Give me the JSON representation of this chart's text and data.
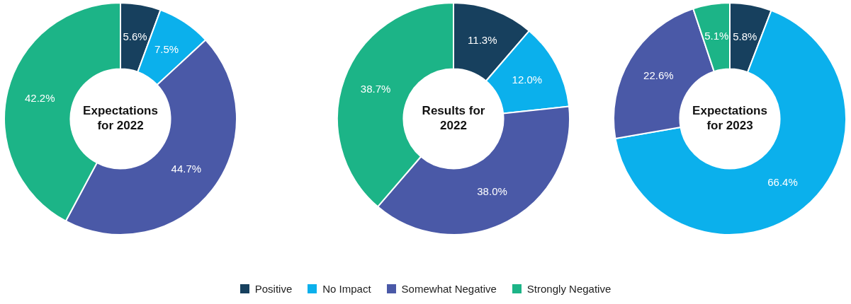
{
  "chart_data": [
    {
      "type": "donut",
      "title": "Expectations for 2022",
      "categories": [
        "Positive",
        "No Impact",
        "Somewhat Negative",
        "Strongly Negative"
      ],
      "values": [
        5.6,
        7.5,
        44.7,
        42.2
      ],
      "colors": [
        "#17405e",
        "#0bb0ec",
        "#4a59a7",
        "#1cb487"
      ],
      "value_labels": [
        "5.6%",
        "7.5%",
        "44.7%",
        "42.2%"
      ],
      "legend": "bottom"
    },
    {
      "type": "donut",
      "title": "Results for 2022",
      "categories": [
        null,
        null,
        null,
        null
      ],
      "values": [
        11.3,
        12.0,
        38.0,
        38.7
      ],
      "colors": [
        "#17405e",
        "#0bb0ec",
        "#4a59a7",
        "#1cb487"
      ],
      "value_labels": [
        "11.3%",
        "12.0%",
        "38.0%",
        "38.7%"
      ]
    },
    {
      "type": "donut",
      "title": "Expectations for 2023",
      "categories": [
        null,
        null,
        null,
        null
      ],
      "values": [
        5.8,
        66.4,
        22.6,
        5.1
      ],
      "colors": [
        "#17405e",
        "#0bb0ec",
        "#4a59a7",
        "#1cb487"
      ],
      "value_labels": [
        "5.8%",
        "66.4%",
        "22.6%",
        "5.1%"
      ]
    }
  ]
}
